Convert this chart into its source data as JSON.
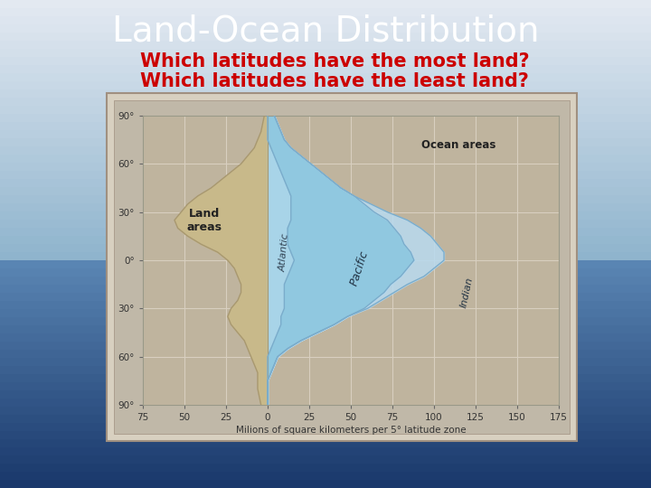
{
  "title": "Land-Ocean Distribution",
  "subtitle_line1": "Which latitudes have the most land?",
  "subtitle_line2": "Which latitudes have the least land?",
  "title_color": "white",
  "subtitle_color": "#cc0000",
  "chart_bg_color": "#bfb49e",
  "chart_border_color": "#c8bfaa",
  "land_color": "#c8b98a",
  "land_border_color": "#a89870",
  "atlantic_color": "#a8d4e8",
  "pacific_color": "#90c8e0",
  "indian_color": "#b8daf0",
  "ocean_border_color": "#7aaccb",
  "latitudes": [
    90,
    85,
    80,
    75,
    70,
    65,
    60,
    55,
    50,
    45,
    40,
    35,
    30,
    25,
    20,
    15,
    10,
    5,
    0,
    -5,
    -10,
    -15,
    -20,
    -25,
    -30,
    -35,
    -40,
    -45,
    -50,
    -55,
    -60,
    -65,
    -70,
    -75,
    -80,
    -85,
    -90
  ],
  "land_values": [
    2,
    3,
    4,
    6,
    8,
    12,
    16,
    22,
    28,
    34,
    42,
    48,
    52,
    56,
    54,
    48,
    40,
    30,
    24,
    20,
    18,
    16,
    16,
    18,
    22,
    24,
    22,
    18,
    14,
    12,
    10,
    8,
    6,
    6,
    6,
    5,
    4
  ],
  "atlantic_values": [
    0,
    0,
    0,
    0,
    2,
    4,
    6,
    8,
    10,
    12,
    14,
    14,
    14,
    14,
    12,
    12,
    12,
    14,
    16,
    14,
    12,
    10,
    10,
    10,
    10,
    8,
    8,
    6,
    4,
    2,
    0,
    0,
    0,
    0,
    0,
    0,
    0
  ],
  "pacific_values": [
    4,
    6,
    8,
    10,
    12,
    16,
    20,
    24,
    28,
    32,
    38,
    44,
    50,
    58,
    64,
    68,
    70,
    72,
    72,
    70,
    68,
    64,
    60,
    54,
    48,
    40,
    32,
    24,
    16,
    10,
    6,
    4,
    2,
    0,
    0,
    0,
    0
  ],
  "indian_values": [
    0,
    0,
    0,
    0,
    0,
    0,
    0,
    0,
    0,
    0,
    0,
    4,
    8,
    12,
    16,
    18,
    20,
    20,
    18,
    16,
    14,
    10,
    6,
    4,
    2,
    0,
    0,
    0,
    0,
    0,
    0,
    0,
    0,
    0,
    0,
    0,
    0
  ],
  "xmin": -75,
  "xmax": 175,
  "xlabel": "Milions of square kilometers per 5° latitude zone",
  "tick_labels": [
    "75",
    "50",
    "25",
    "0",
    "25",
    "50",
    "75",
    "100",
    "125",
    "150",
    "175"
  ],
  "tick_positions": [
    -75,
    -50,
    -25,
    0,
    25,
    50,
    75,
    100,
    125,
    150,
    175
  ],
  "y_labels": [
    "90°",
    "60°",
    "30°",
    "0°",
    "30°",
    "60°",
    "90°"
  ],
  "y_positions": [
    90,
    60,
    30,
    0,
    -30,
    -60,
    -90
  ],
  "grid_color": "#d8cfc0",
  "title_fontsize": 28,
  "subtitle_fontsize": 15
}
